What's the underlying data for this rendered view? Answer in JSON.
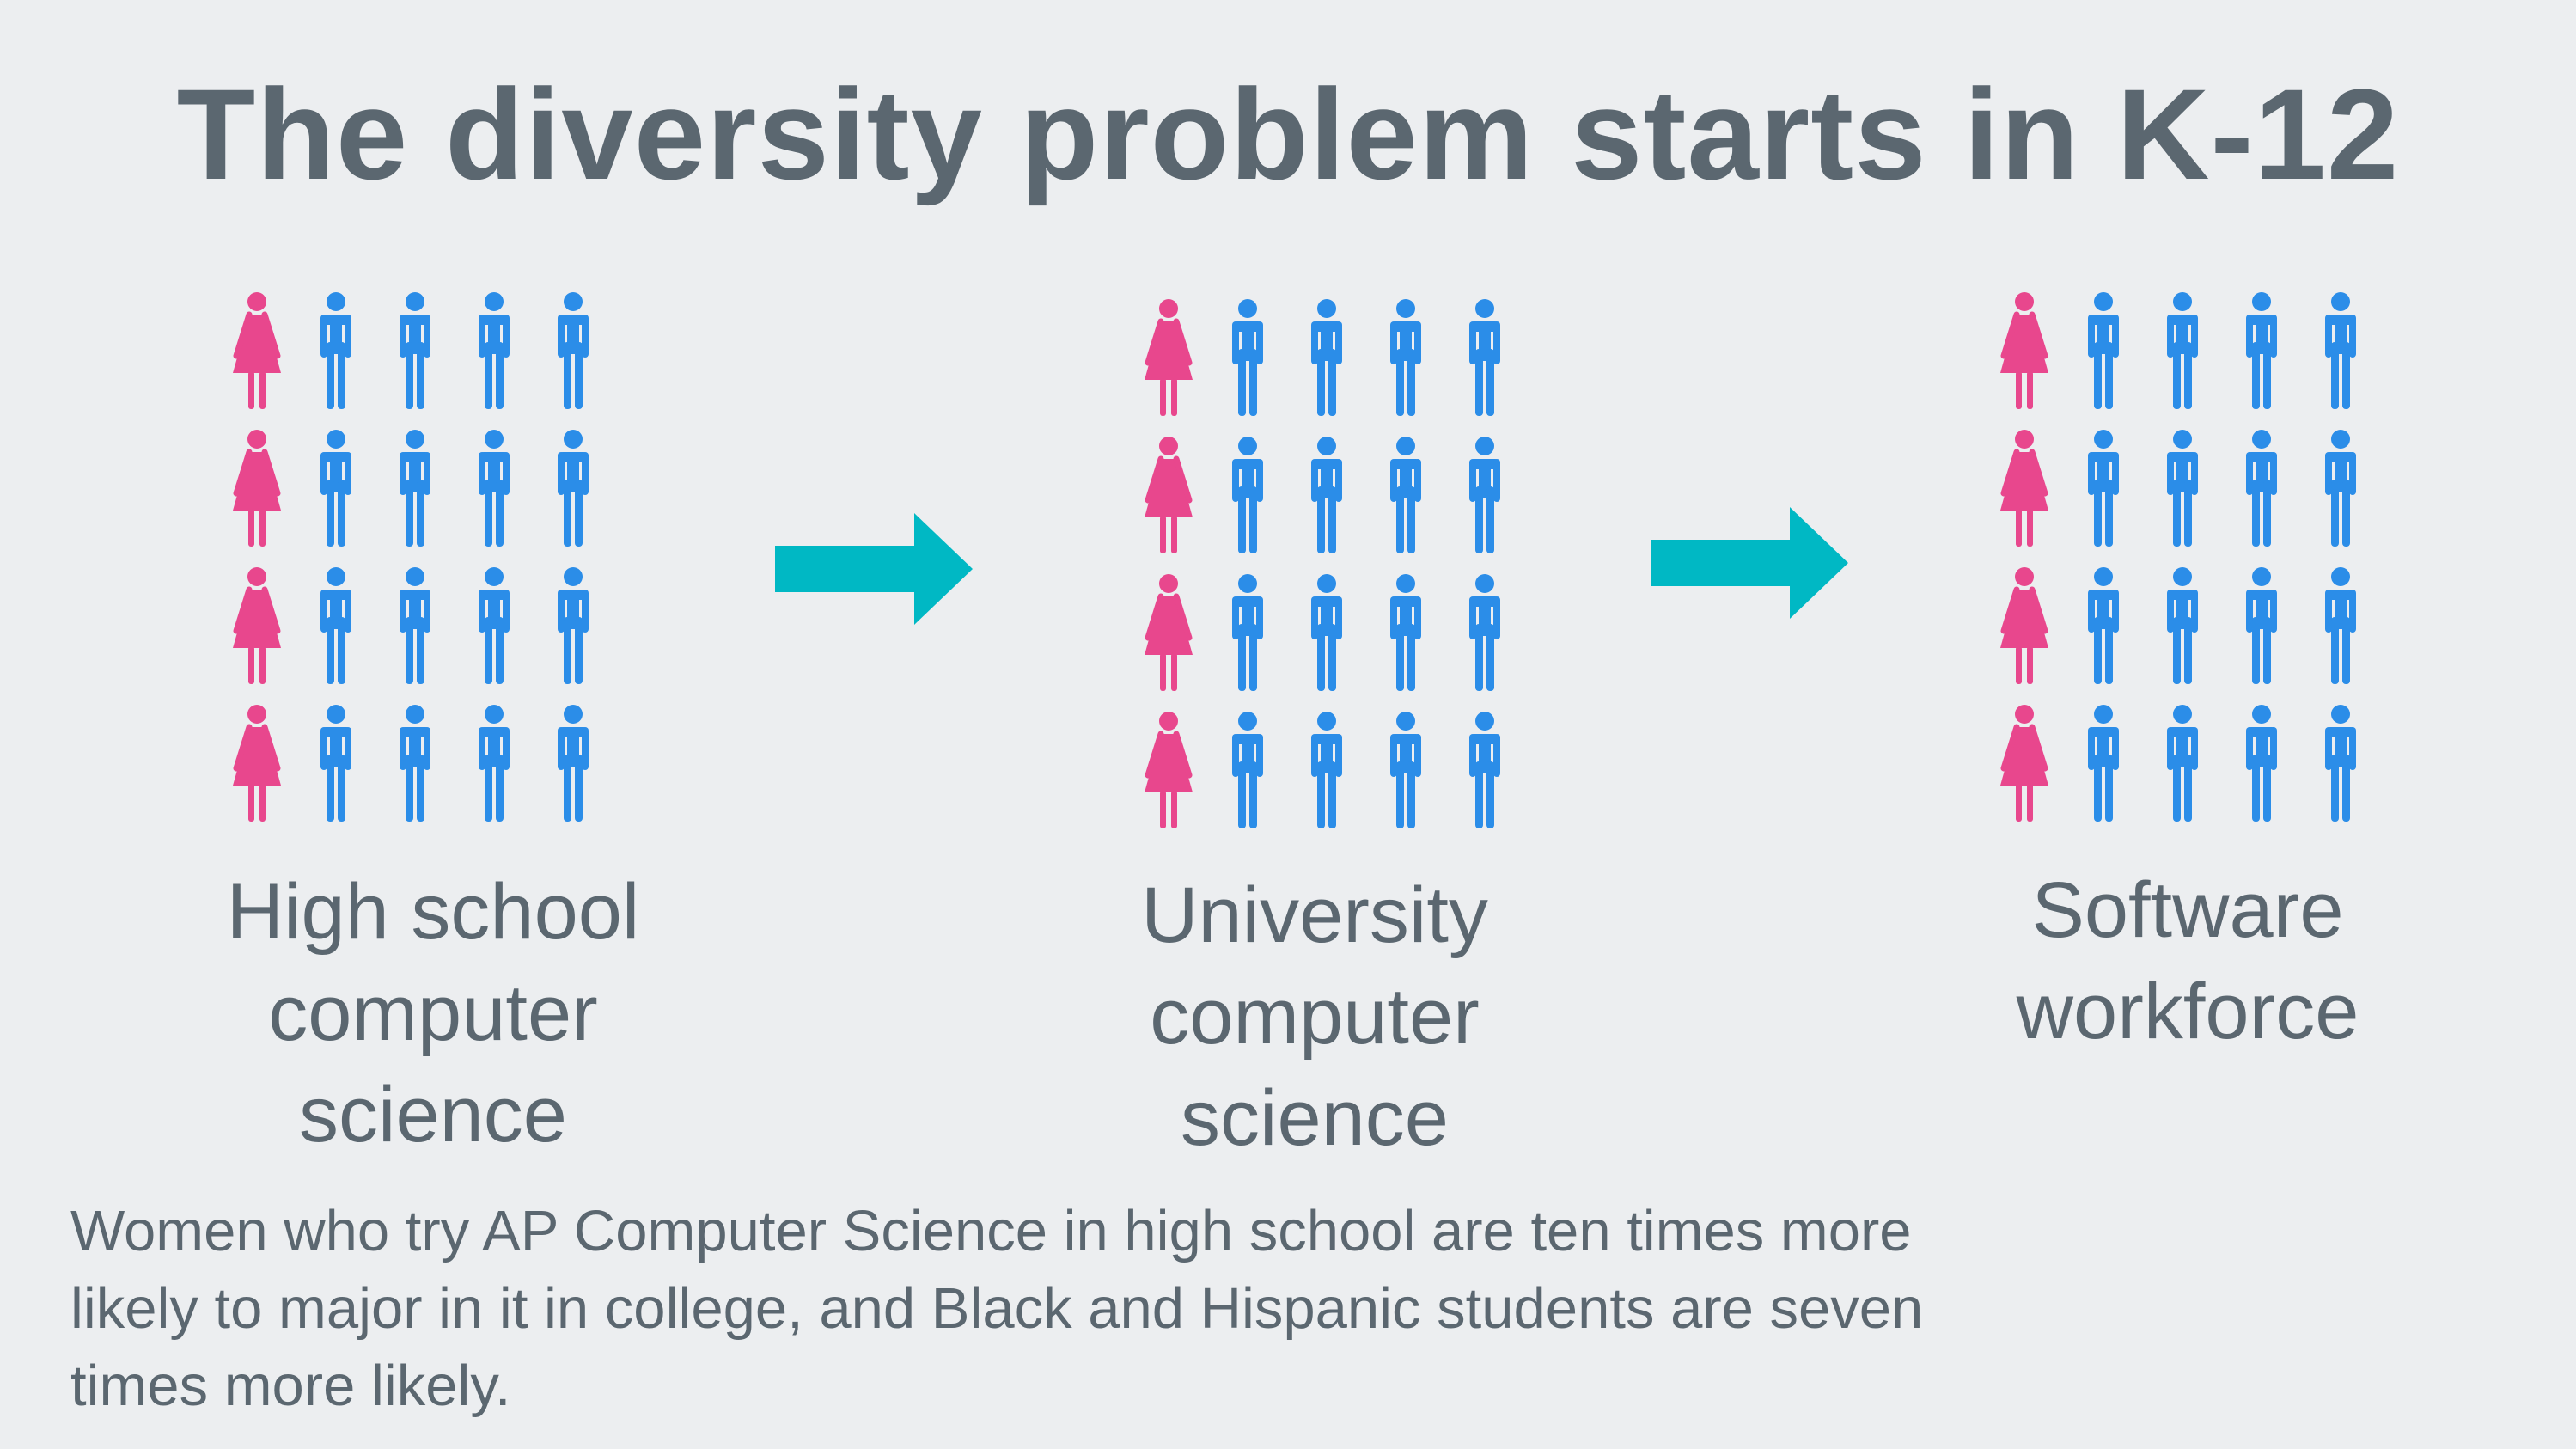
{
  "title": "The diversity problem starts in K-12",
  "colors": {
    "background": "#eceef0",
    "text": "#5b6770",
    "woman": "#e8478d",
    "man": "#2b8de8",
    "arrow": "#00b8c4"
  },
  "icons": {
    "woman": "woman-icon",
    "man": "man-icon",
    "arrow": "arrow-right-icon"
  },
  "groups": [
    {
      "label_lines": [
        "High school",
        "computer",
        "science"
      ],
      "rows": 4,
      "columns": 5,
      "women_per_row": 1
    },
    {
      "label_lines": [
        "University",
        "computer",
        "science"
      ],
      "rows": 4,
      "columns": 5,
      "women_per_row": 1
    },
    {
      "label_lines": [
        "Software",
        "workforce"
      ],
      "rows": 4,
      "columns": 5,
      "women_per_row": 1
    }
  ],
  "footer": {
    "lines": [
      "Women who try AP Computer Science in high school are ten times more",
      "likely to major in it in college, and Black and Hispanic students are seven",
      "times more likely."
    ]
  }
}
